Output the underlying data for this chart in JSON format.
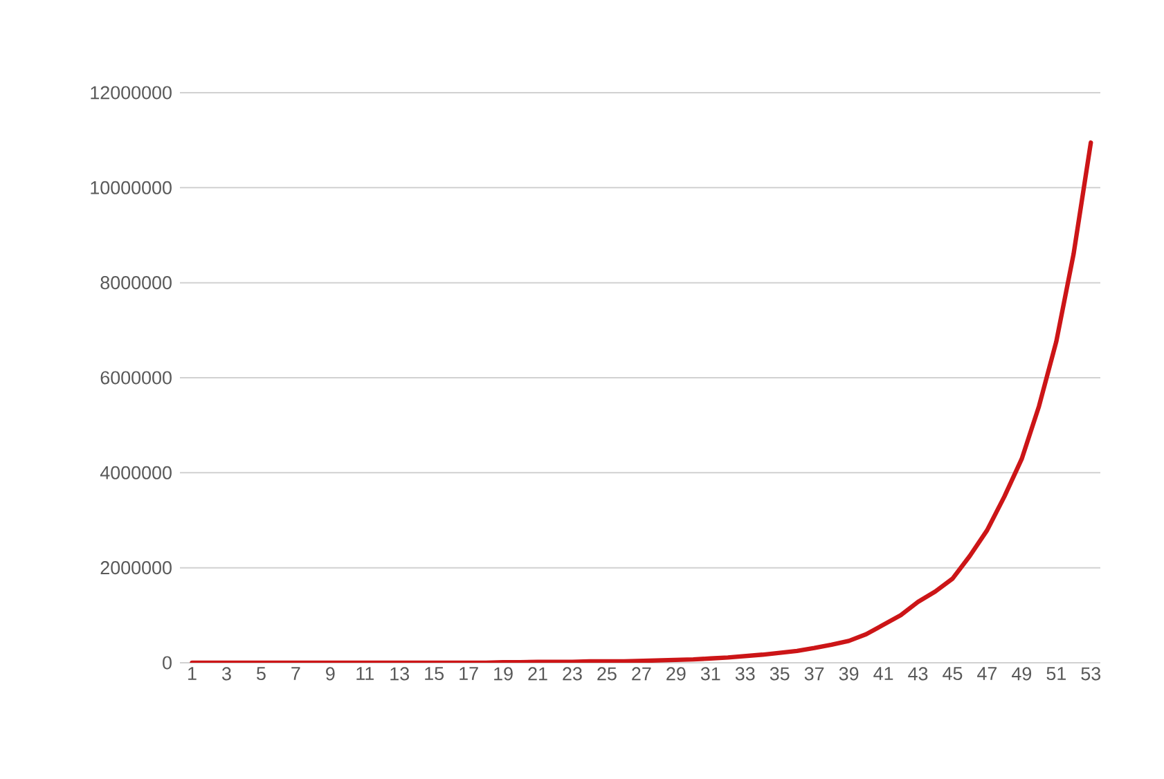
{
  "chart_data": {
    "type": "line",
    "categories": [
      "1",
      null,
      "3",
      null,
      "5",
      null,
      "7",
      null,
      "9",
      null,
      "11",
      null,
      "13",
      null,
      "15",
      null,
      "17",
      null,
      "19",
      null,
      "21",
      null,
      "23",
      null,
      "25",
      null,
      "27",
      null,
      "29",
      null,
      "31",
      null,
      "33",
      null,
      "35",
      null,
      "37",
      null,
      "39",
      null,
      "41",
      null,
      "43",
      null,
      "45",
      null,
      "47",
      null,
      "49",
      null,
      "51",
      null,
      "53"
    ],
    "values": [
      0,
      0,
      0,
      0,
      0,
      0,
      0,
      0,
      0,
      0,
      0,
      0,
      0,
      0,
      0,
      0,
      0,
      0,
      10000,
      10000,
      20000,
      20000,
      20000,
      30000,
      30000,
      30000,
      40000,
      50000,
      60000,
      70000,
      90000,
      110000,
      140000,
      170000,
      210000,
      250000,
      310000,
      380000,
      460000,
      600000,
      800000,
      1000000,
      1280000,
      1500000,
      1770000,
      2250000,
      2790000,
      3500000,
      4290000,
      5400000,
      6760000,
      8600000,
      10950000
    ],
    "color": "#cc1517",
    "line_style": "solid",
    "ylim": [
      0,
      12000000
    ],
    "yticks": [
      0,
      2000000,
      4000000,
      6000000,
      8000000,
      10000000,
      12000000
    ],
    "grid": "y"
  }
}
